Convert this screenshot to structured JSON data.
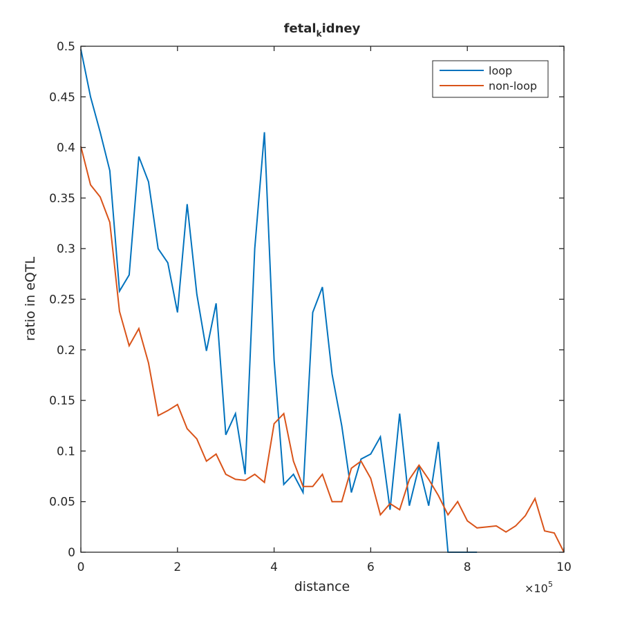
{
  "chart_data": {
    "type": "line",
    "title": "fetal_kidney",
    "xlabel": "distance",
    "ylabel": "ratio in eQTL",
    "x_exponent_label": "×10",
    "x_exponent": "5",
    "xlim": [
      0,
      10
    ],
    "ylim": [
      0,
      0.5
    ],
    "xticks": [
      0,
      2,
      4,
      6,
      8,
      10
    ],
    "xtick_labels": [
      "0",
      "2",
      "4",
      "6",
      "8",
      "10"
    ],
    "yticks": [
      0,
      0.05,
      0.1,
      0.15,
      0.2,
      0.25,
      0.3,
      0.35,
      0.4,
      0.45,
      0.5
    ],
    "ytick_labels": [
      "0",
      "0.05",
      "0.1",
      "0.15",
      "0.2",
      "0.25",
      "0.3",
      "0.35",
      "0.4",
      "0.45",
      "0.5"
    ],
    "grid": false,
    "legend_position": "top-right",
    "series": [
      {
        "name": "loop",
        "color": "#0072BD",
        "x": [
          0,
          0.2,
          0.4,
          0.6,
          0.8,
          1.0,
          1.2,
          1.4,
          1.6,
          1.8,
          2.0,
          2.2,
          2.4,
          2.6,
          2.8,
          3.0,
          3.2,
          3.4,
          3.6,
          3.8,
          4.0,
          4.2,
          4.4,
          4.6,
          4.8,
          5.0,
          5.2,
          5.4,
          5.6,
          5.8,
          6.0,
          6.2,
          6.4,
          6.6,
          6.8,
          7.0,
          7.2,
          7.4,
          7.6,
          7.8,
          8.0,
          8.2
        ],
        "values": [
          0.497,
          0.45,
          0.415,
          0.377,
          0.258,
          0.274,
          0.391,
          0.366,
          0.3,
          0.286,
          0.237,
          0.344,
          0.255,
          0.199,
          0.246,
          0.116,
          0.137,
          0.077,
          0.3,
          0.415,
          0.19,
          0.067,
          0.077,
          0.059,
          0.237,
          0.262,
          0.176,
          0.125,
          0.059,
          0.092,
          0.097,
          0.114,
          0.042,
          0.137,
          0.046,
          0.085,
          0.046,
          0.109,
          0,
          0,
          0,
          0
        ]
      },
      {
        "name": "non-loop",
        "color": "#D95319",
        "x": [
          0,
          0.2,
          0.4,
          0.6,
          0.8,
          1.0,
          1.2,
          1.4,
          1.6,
          1.8,
          2.0,
          2.2,
          2.4,
          2.6,
          2.8,
          3.0,
          3.2,
          3.4,
          3.6,
          3.8,
          4.0,
          4.2,
          4.4,
          4.6,
          4.8,
          5.0,
          5.2,
          5.4,
          5.6,
          5.8,
          6.0,
          6.2,
          6.4,
          6.6,
          6.8,
          7.0,
          7.2,
          7.4,
          7.6,
          7.8,
          8.0,
          8.2,
          8.4,
          8.6,
          8.8,
          9.0,
          9.2,
          9.4,
          9.6,
          9.8,
          10.0
        ],
        "values": [
          0.401,
          0.363,
          0.351,
          0.326,
          0.238,
          0.204,
          0.221,
          0.187,
          0.135,
          0.14,
          0.146,
          0.122,
          0.112,
          0.09,
          0.097,
          0.077,
          0.072,
          0.071,
          0.077,
          0.069,
          0.127,
          0.137,
          0.09,
          0.065,
          0.065,
          0.077,
          0.05,
          0.05,
          0.083,
          0.09,
          0.073,
          0.037,
          0.048,
          0.042,
          0.072,
          0.086,
          0.072,
          0.056,
          0.037,
          0.05,
          0.031,
          0.024,
          0.025,
          0.026,
          0.02,
          0.026,
          0.036,
          0.053,
          0.021,
          0.019,
          0
        ]
      }
    ]
  }
}
